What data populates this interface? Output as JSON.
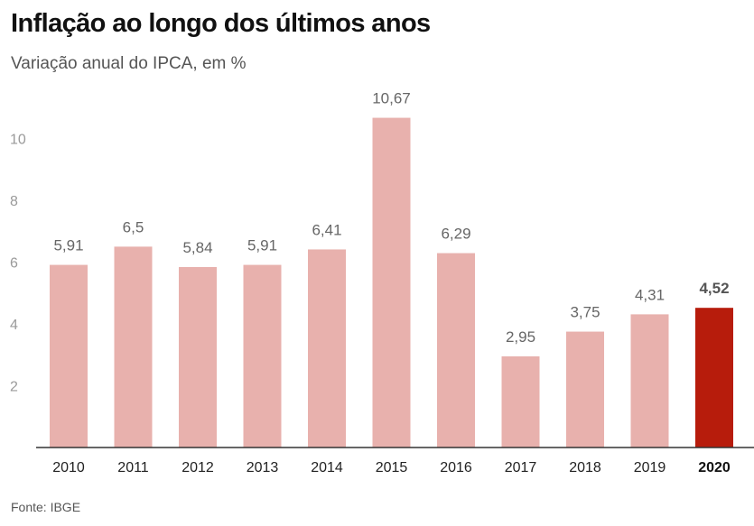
{
  "header": {
    "title": "Inflação ao longo dos últimos anos",
    "subtitle": "Variação anual do IPCA, em %"
  },
  "footer": {
    "source": "Fonte: IBGE"
  },
  "colors": {
    "bar": "#e8b1ad",
    "highlight": "#b71c0c",
    "axis": "#333333"
  },
  "chart_data": {
    "type": "bar",
    "title": "Inflação ao longo dos últimos anos",
    "subtitle": "Variação anual do IPCA, em %",
    "xlabel": "",
    "ylabel": "",
    "categories": [
      "2010",
      "2011",
      "2012",
      "2013",
      "2014",
      "2015",
      "2016",
      "2017",
      "2018",
      "2019",
      "2020"
    ],
    "values": [
      5.91,
      6.5,
      5.84,
      5.91,
      6.41,
      10.67,
      6.29,
      2.95,
      3.75,
      4.31,
      4.52
    ],
    "value_labels": [
      "5,91",
      "6,5",
      "5,84",
      "5,91",
      "6,41",
      "10,67",
      "6,29",
      "2,95",
      "3,75",
      "4,31",
      "4,52"
    ],
    "highlight": "2020",
    "ylim": [
      0,
      11.7
    ],
    "yticks": [
      2,
      4,
      6,
      8,
      10
    ],
    "grid": false,
    "legend": "none"
  }
}
